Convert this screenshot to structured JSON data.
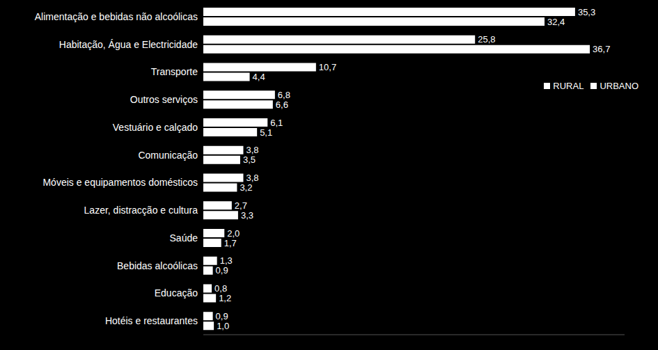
{
  "chart_data": {
    "type": "bar",
    "orientation": "horizontal",
    "categories": [
      "Alimentação e bebidas não alcoólicas",
      "Habitação, Água e Electricidade",
      "Transporte",
      "Outros serviços",
      "Vestuário e calçado",
      "Comunicação",
      "Móveis e equipamentos domésticos",
      "Lazer, distracção e cultura",
      "Saúde",
      "Bebidas alcoólicas",
      "Educação",
      "Hotéis e restaurantes"
    ],
    "series": [
      {
        "name": "RURAL",
        "color": "#ffffff",
        "values": [
          35.3,
          25.8,
          10.7,
          6.8,
          6.1,
          3.8,
          3.8,
          2.7,
          2.0,
          1.3,
          0.8,
          0.9
        ],
        "value_labels": [
          "35,3",
          "25,8",
          "10,7",
          "6,8",
          "6,1",
          "3,8",
          "3,8",
          "2,7",
          "2,0",
          "1,3",
          "0,8",
          "0,9"
        ]
      },
      {
        "name": "URBANO",
        "color": "#ffffff",
        "values": [
          32.4,
          36.7,
          4.4,
          6.6,
          5.1,
          3.5,
          3.2,
          3.3,
          1.7,
          0.9,
          1.2,
          1.0
        ],
        "value_labels": [
          "32,4",
          "36,7",
          "4,4",
          "6,6",
          "5,1",
          "3,5",
          "3,2",
          "3,3",
          "1,7",
          "0,9",
          "1,2",
          "1,0"
        ]
      }
    ],
    "xlim": [
      0,
      40
    ],
    "data_labels": true,
    "tick_labels": "y",
    "legend": "right",
    "grid": false
  }
}
